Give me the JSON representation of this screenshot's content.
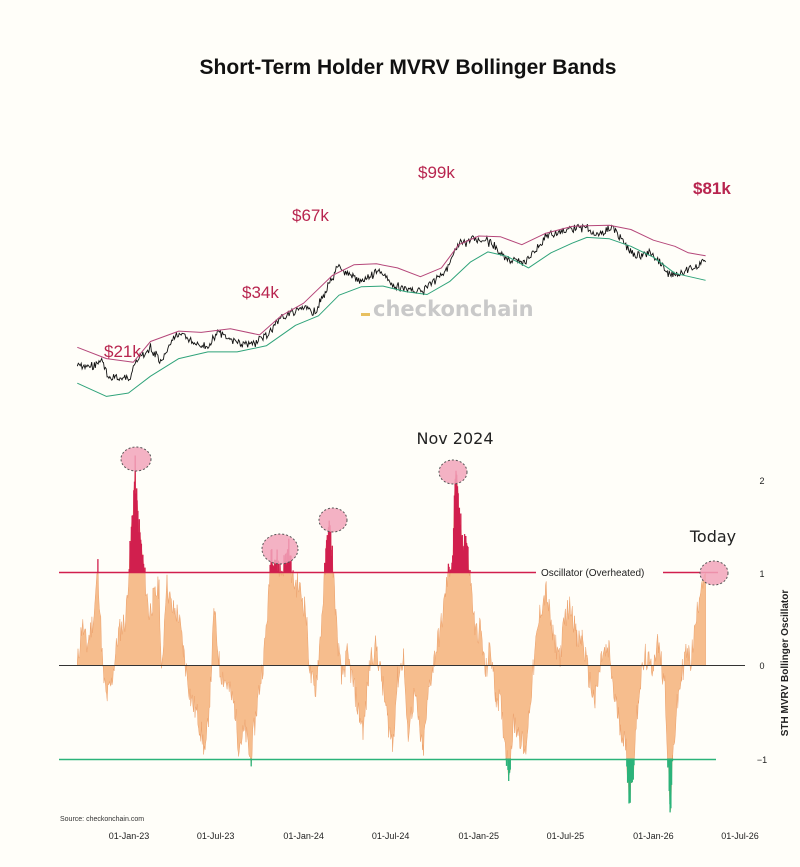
{
  "chart_data": {
    "title": "Short-Term Holder MVRV Bollinger Bands",
    "watermark": "checkonchain",
    "source": "Source: checkonchain.com",
    "xlabels": [
      "01-Jan-23",
      "01-Jul-23",
      "01-Jan-24",
      "01-Jul-24",
      "01-Jan-25",
      "01-Jul-25",
      "01-Jan-26",
      "01-Jul-26"
    ],
    "price_panel": {
      "type": "line",
      "unit": "USD",
      "price_labels": [
        "$21k",
        "$34k",
        "$67k",
        "$99k",
        "$81k"
      ],
      "series": [
        {
          "role": "price",
          "color": "#111111",
          "points": [
            [
              "2022-09-15",
              19500
            ],
            [
              "2022-10-15",
              19200
            ],
            [
              "2022-11-05",
              21000
            ],
            [
              "2022-11-20",
              16500
            ],
            [
              "2022-12-31",
              16600
            ],
            [
              "2023-01-20",
              21500
            ],
            [
              "2023-02-15",
              24500
            ],
            [
              "2023-03-10",
              20200
            ],
            [
              "2023-04-10",
              30000
            ],
            [
              "2023-05-10",
              27500
            ],
            [
              "2023-06-15",
              25200
            ],
            [
              "2023-07-05",
              30500
            ],
            [
              "2023-08-20",
              26000
            ],
            [
              "2023-09-10",
              25800
            ],
            [
              "2023-10-20",
              30000
            ],
            [
              "2023-11-10",
              36500
            ],
            [
              "2023-12-31",
              42200
            ],
            [
              "2024-01-23",
              39500
            ],
            [
              "2024-02-15",
              51500
            ],
            [
              "2024-03-13",
              72000
            ],
            [
              "2024-04-15",
              64000
            ],
            [
              "2024-05-01",
              58500
            ],
            [
              "2024-06-05",
              71000
            ],
            [
              "2024-07-05",
              56500
            ],
            [
              "2024-08-05",
              53000
            ],
            [
              "2024-09-06",
              53500
            ],
            [
              "2024-10-29",
              72500
            ],
            [
              "2024-11-20",
              97000
            ],
            [
              "2024-12-17",
              106000
            ],
            [
              "2025-01-20",
              105000
            ],
            [
              "2025-02-28",
              80000
            ],
            [
              "2025-04-08",
              77000
            ],
            [
              "2025-05-22",
              110000
            ],
            [
              "2025-07-14",
              122000
            ],
            [
              "2025-08-14",
              123500
            ],
            [
              "2025-09-01",
              108500
            ],
            [
              "2025-10-06",
              125000
            ],
            [
              "2025-11-20",
              85000
            ],
            [
              "2025-12-31",
              88000
            ],
            [
              "2026-02-05",
              64000
            ],
            [
              "2026-02-28",
              68000
            ],
            [
              "2026-03-25",
              72000
            ],
            [
              "2026-04-20",
              80500
            ]
          ]
        },
        {
          "role": "upper_band",
          "color": "#b5477a",
          "points": [
            [
              "2022-09-15",
              25000
            ],
            [
              "2022-11-15",
              21500
            ],
            [
              "2023-01-10",
              20500
            ],
            [
              "2023-02-15",
              27000
            ],
            [
              "2023-04-15",
              31000
            ],
            [
              "2023-06-01",
              30500
            ],
            [
              "2023-08-01",
              32000
            ],
            [
              "2023-10-01",
              29500
            ],
            [
              "2023-11-15",
              38000
            ],
            [
              "2024-01-01",
              45000
            ],
            [
              "2024-03-01",
              65000
            ],
            [
              "2024-04-15",
              75000
            ],
            [
              "2024-06-01",
              76000
            ],
            [
              "2024-07-15",
              72000
            ],
            [
              "2024-09-01",
              64000
            ],
            [
              "2024-10-15",
              72000
            ],
            [
              "2024-11-20",
              98000
            ],
            [
              "2025-01-01",
              110000
            ],
            [
              "2025-02-15",
              109000
            ],
            [
              "2025-04-01",
              98000
            ],
            [
              "2025-05-20",
              114000
            ],
            [
              "2025-07-15",
              125000
            ],
            [
              "2025-08-15",
              126000
            ],
            [
              "2025-10-01",
              127000
            ],
            [
              "2025-11-15",
              120000
            ],
            [
              "2026-01-01",
              104000
            ],
            [
              "2026-02-15",
              96000
            ],
            [
              "2026-03-15",
              88000
            ],
            [
              "2026-04-20",
              84500
            ]
          ]
        },
        {
          "role": "lower_band",
          "color": "#2fa37a",
          "points": [
            [
              "2022-09-15",
              15500
            ],
            [
              "2022-11-15",
              13000
            ],
            [
              "2022-12-31",
              13600
            ],
            [
              "2023-02-15",
              17000
            ],
            [
              "2023-04-15",
              21500
            ],
            [
              "2023-06-15",
              23500
            ],
            [
              "2023-08-15",
              23500
            ],
            [
              "2023-10-15",
              25500
            ],
            [
              "2023-12-15",
              33500
            ],
            [
              "2024-02-01",
              38000
            ],
            [
              "2024-03-15",
              50000
            ],
            [
              "2024-05-01",
              56000
            ],
            [
              "2024-06-15",
              56500
            ],
            [
              "2024-08-01",
              52500
            ],
            [
              "2024-09-15",
              50500
            ],
            [
              "2024-11-01",
              60000
            ],
            [
              "2024-12-15",
              78000
            ],
            [
              "2025-01-20",
              89000
            ],
            [
              "2025-03-01",
              84000
            ],
            [
              "2025-04-15",
              72000
            ],
            [
              "2025-06-01",
              88000
            ],
            [
              "2025-07-15",
              100000
            ],
            [
              "2025-08-15",
              108000
            ],
            [
              "2025-10-01",
              106000
            ],
            [
              "2025-11-15",
              96000
            ],
            [
              "2026-01-01",
              83000
            ],
            [
              "2026-02-15",
              67000
            ],
            [
              "2026-04-20",
              61000
            ]
          ]
        }
      ]
    },
    "oscillator_panel": {
      "type": "area",
      "ylabel": "STH MVRV Bollinger Oscillator",
      "yticks": [
        "2",
        "1",
        "0",
        "−1"
      ],
      "ylim": [
        -1.65,
        2.3
      ],
      "overheated_level": 1,
      "oversold_level": -1,
      "overheated_label": "Oscillator (Overheated)",
      "annotations": [
        "Nov 2024",
        "Today"
      ],
      "colors": {
        "fill": "#f5b27a",
        "overheated": "#d11f4e",
        "oversold": "#2bb37a",
        "zero_line": "#333333"
      },
      "points": [
        [
          "2022-09-15",
          0
        ],
        [
          "2022-09-25",
          0.45
        ],
        [
          "2022-10-05",
          0.2
        ],
        [
          "2022-10-20",
          0.55
        ],
        [
          "2022-10-28",
          1.05
        ],
        [
          "2022-11-08",
          -0.1
        ],
        [
          "2022-11-15",
          -0.35
        ],
        [
          "2022-11-25",
          -0.2
        ],
        [
          "2022-12-10",
          0.35
        ],
        [
          "2022-12-25",
          0.5
        ],
        [
          "2023-01-08",
          1.6
        ],
        [
          "2023-01-14",
          2.12
        ],
        [
          "2023-01-18",
          1.7
        ],
        [
          "2023-01-24",
          1.4
        ],
        [
          "2023-02-02",
          1.0
        ],
        [
          "2023-02-12",
          0.55
        ],
        [
          "2023-02-20",
          0.7
        ],
        [
          "2023-03-05",
          0.85
        ],
        [
          "2023-03-10",
          -0.15
        ],
        [
          "2023-03-20",
          0.9
        ],
        [
          "2023-04-01",
          0.6
        ],
        [
          "2023-04-14",
          0.55
        ],
        [
          "2023-04-25",
          0.15
        ],
        [
          "2023-05-10",
          -0.35
        ],
        [
          "2023-05-25",
          -0.55
        ],
        [
          "2023-06-10",
          -0.95
        ],
        [
          "2023-06-20",
          -0.25
        ],
        [
          "2023-06-28",
          0.6
        ],
        [
          "2023-07-10",
          -0.05
        ],
        [
          "2023-07-25",
          -0.2
        ],
        [
          "2023-08-10",
          -0.45
        ],
        [
          "2023-08-18",
          -0.85
        ],
        [
          "2023-09-01",
          -0.7
        ],
        [
          "2023-09-12",
          -1.02
        ],
        [
          "2023-09-25",
          -0.45
        ],
        [
          "2023-10-10",
          0.1
        ],
        [
          "2023-10-20",
          0.75
        ],
        [
          "2023-10-25",
          1.25
        ],
        [
          "2023-11-05",
          1.15
        ],
        [
          "2023-11-15",
          1.0
        ],
        [
          "2023-12-01",
          1.25
        ],
        [
          "2023-12-10",
          0.9
        ],
        [
          "2023-12-22",
          0.85
        ],
        [
          "2024-01-05",
          0.6
        ],
        [
          "2024-01-15",
          -0.1
        ],
        [
          "2024-01-25",
          -0.3
        ],
        [
          "2024-02-05",
          0.3
        ],
        [
          "2024-02-15",
          1.05
        ],
        [
          "2024-02-22",
          1.55
        ],
        [
          "2024-03-01",
          1.2
        ],
        [
          "2024-03-10",
          0.4
        ],
        [
          "2024-03-20",
          -0.15
        ],
        [
          "2024-04-01",
          0.1
        ],
        [
          "2024-04-12",
          -0.15
        ],
        [
          "2024-04-25",
          -0.5
        ],
        [
          "2024-05-05",
          -0.7
        ],
        [
          "2024-05-20",
          0.1
        ],
        [
          "2024-06-01",
          0.2
        ],
        [
          "2024-06-15",
          -0.25
        ],
        [
          "2024-06-25",
          -0.6
        ],
        [
          "2024-07-05",
          -0.85
        ],
        [
          "2024-07-15",
          -0.15
        ],
        [
          "2024-07-28",
          0.1
        ],
        [
          "2024-08-05",
          -0.75
        ],
        [
          "2024-08-20",
          -0.3
        ],
        [
          "2024-09-06",
          -0.95
        ],
        [
          "2024-09-20",
          -0.2
        ],
        [
          "2024-10-01",
          0.1
        ],
        [
          "2024-10-15",
          0.45
        ],
        [
          "2024-10-28",
          0.95
        ],
        [
          "2024-11-08",
          1.2
        ],
        [
          "2024-11-13",
          2.08
        ],
        [
          "2024-11-20",
          1.7
        ],
        [
          "2024-11-28",
          1.35
        ],
        [
          "2024-12-05",
          1.4
        ],
        [
          "2024-12-15",
          0.9
        ],
        [
          "2024-12-25",
          0.35
        ],
        [
          "2025-01-05",
          0.4
        ],
        [
          "2025-01-15",
          -0.1
        ],
        [
          "2025-01-25",
          0.2
        ],
        [
          "2025-02-05",
          -0.3
        ],
        [
          "2025-02-15",
          -0.4
        ],
        [
          "2025-02-28",
          -0.95
        ],
        [
          "2025-03-05",
          -1.15
        ],
        [
          "2025-03-15",
          -0.6
        ],
        [
          "2025-03-25",
          -0.7
        ],
        [
          "2025-04-08",
          -0.95
        ],
        [
          "2025-04-20",
          -0.3
        ],
        [
          "2025-05-01",
          0.25
        ],
        [
          "2025-05-10",
          0.6
        ],
        [
          "2025-05-22",
          0.8
        ],
        [
          "2025-06-05",
          0.3
        ],
        [
          "2025-06-20",
          0.1
        ],
        [
          "2025-07-01",
          0.55
        ],
        [
          "2025-07-14",
          0.65
        ],
        [
          "2025-07-25",
          0.25
        ],
        [
          "2025-08-05",
          0.3
        ],
        [
          "2025-08-20",
          -0.15
        ],
        [
          "2025-09-01",
          -0.4
        ],
        [
          "2025-09-15",
          0.1
        ],
        [
          "2025-10-01",
          0.15
        ],
        [
          "2025-10-10",
          -0.3
        ],
        [
          "2025-10-20",
          -0.55
        ],
        [
          "2025-11-05",
          -0.9
        ],
        [
          "2025-11-12",
          -1.45
        ],
        [
          "2025-11-20",
          -1.1
        ],
        [
          "2025-12-01",
          -0.3
        ],
        [
          "2025-12-15",
          0.1
        ],
        [
          "2025-12-28",
          -0.05
        ],
        [
          "2026-01-10",
          0.25
        ],
        [
          "2026-01-25",
          -0.2
        ],
        [
          "2026-02-05",
          -1.6
        ],
        [
          "2026-02-10",
          -1.05
        ],
        [
          "2026-02-18",
          -0.5
        ],
        [
          "2026-03-01",
          -0.1
        ],
        [
          "2026-03-10",
          0.15
        ],
        [
          "2026-03-20",
          0.05
        ],
        [
          "2026-04-01",
          0.5
        ],
        [
          "2026-04-10",
          0.9
        ],
        [
          "2026-04-20",
          1.0
        ]
      ]
    }
  }
}
